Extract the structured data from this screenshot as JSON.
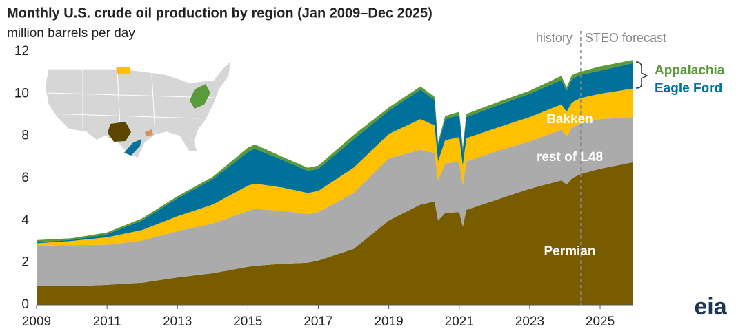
{
  "chart_data": {
    "type": "stacked-area",
    "title": "Monthly U.S. crude oil production by region (Jan 2009–Dec 2025)",
    "subtitle": "million barrels per day",
    "x": [
      2009.0,
      2010.0,
      2011.0,
      2012.0,
      2013.0,
      2014.0,
      2015.0,
      2015.2,
      2016.0,
      2016.7,
      2017.0,
      2018.0,
      2019.0,
      2019.9,
      2020.3,
      2020.4,
      2020.6,
      2021.0,
      2021.1,
      2021.2,
      2022.0,
      2023.0,
      2023.9,
      2024.05,
      2024.2,
      2024.45,
      2025.0,
      2025.92
    ],
    "series": [
      {
        "name": "Permian",
        "color": "#7a5c00",
        "values": [
          0.88,
          0.88,
          0.95,
          1.05,
          1.3,
          1.5,
          1.8,
          1.85,
          1.95,
          2.0,
          2.1,
          2.65,
          4.0,
          4.75,
          4.9,
          4.0,
          4.35,
          4.4,
          3.7,
          4.5,
          4.95,
          5.5,
          5.9,
          5.7,
          6.0,
          6.2,
          6.45,
          6.75
        ]
      },
      {
        "name": "rest of L48",
        "color": "#ababab",
        "values": [
          1.92,
          1.95,
          1.9,
          2.0,
          2.2,
          2.35,
          2.65,
          2.7,
          2.5,
          2.3,
          2.3,
          2.65,
          2.95,
          2.6,
          2.3,
          1.9,
          2.35,
          2.4,
          2.0,
          2.3,
          2.3,
          2.25,
          2.4,
          2.3,
          2.4,
          2.4,
          2.35,
          2.15
        ]
      },
      {
        "name": "Bakken",
        "color": "#ffc000",
        "values": [
          0.12,
          0.2,
          0.35,
          0.5,
          0.7,
          0.9,
          1.2,
          1.2,
          1.1,
          1.0,
          1.0,
          1.2,
          1.15,
          1.45,
          1.3,
          0.9,
          1.1,
          1.15,
          0.9,
          1.1,
          1.1,
          1.15,
          1.2,
          1.15,
          1.2,
          1.2,
          1.2,
          1.35
        ]
      },
      {
        "name": "Eagle Ford",
        "color": "#00719b",
        "values": [
          0.05,
          0.05,
          0.15,
          0.45,
          0.85,
          1.2,
          1.6,
          1.65,
          1.3,
          1.05,
          1.05,
          1.35,
          1.1,
          1.4,
          1.2,
          0.75,
          1.0,
          1.05,
          0.7,
          1.0,
          1.05,
          1.1,
          1.15,
          1.0,
          1.1,
          1.1,
          1.1,
          1.2
        ]
      },
      {
        "name": "Appalachia",
        "color": "#5b9a3a",
        "values": [
          0.1,
          0.08,
          0.08,
          0.1,
          0.1,
          0.12,
          0.2,
          0.2,
          0.15,
          0.15,
          0.15,
          0.2,
          0.15,
          0.15,
          0.15,
          0.15,
          0.15,
          0.15,
          0.15,
          0.15,
          0.15,
          0.15,
          0.2,
          0.15,
          0.2,
          0.15,
          0.2,
          0.15
        ]
      }
    ],
    "xlim": [
      2009.0,
      2025.92
    ],
    "xticks": [
      2009,
      2011,
      2013,
      2015,
      2017,
      2019,
      2021,
      2023,
      2025
    ],
    "ylim": [
      0,
      12
    ],
    "yticks": [
      0,
      2,
      4,
      6,
      8,
      10,
      12
    ],
    "forecast_start": 2024.45,
    "history_label": "history",
    "forecast_label": "STEO forecast",
    "source_logo": "eia"
  }
}
